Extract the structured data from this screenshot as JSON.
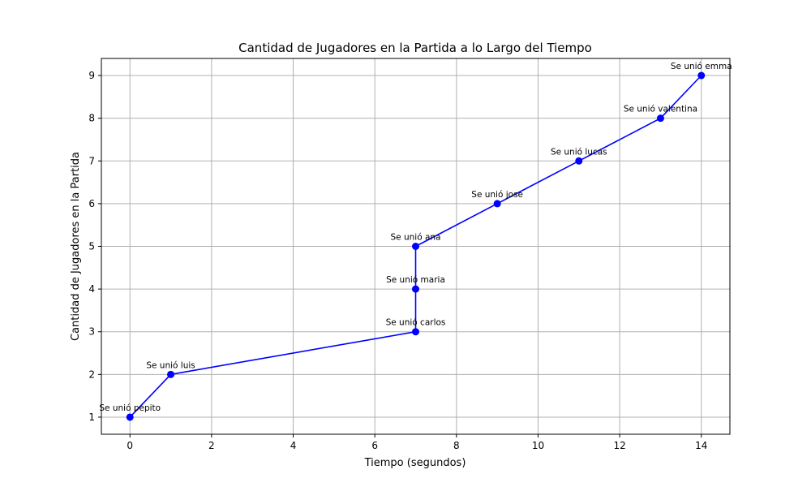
{
  "chart_data": {
    "type": "line",
    "title": "Cantidad de Jugadores en la Partida a lo Largo del Tiempo",
    "xlabel": "Tiempo (segundos)",
    "ylabel": "Cantidad de Jugadores en la Partida",
    "xlim": [
      -0.7,
      14.7
    ],
    "ylim": [
      0.6,
      9.4
    ],
    "xticks": [
      0,
      2,
      4,
      6,
      8,
      10,
      12,
      14
    ],
    "yticks": [
      1,
      2,
      3,
      4,
      5,
      6,
      7,
      8,
      9
    ],
    "grid": true,
    "series": [
      {
        "color": "#0000ff",
        "marker": "circle",
        "x": [
          0,
          1,
          7,
          7,
          7,
          9,
          11,
          13,
          14
        ],
        "y": [
          1,
          2,
          3,
          4,
          5,
          6,
          7,
          8,
          9
        ]
      }
    ],
    "annotations": [
      "Se unió pepito",
      "Se unió luis",
      "Se unió carlos",
      "Se unió maria",
      "Se unió ana",
      "Se unió jose",
      "Se unió lucas",
      "Se unió valentina",
      "Se unió emma"
    ]
  }
}
